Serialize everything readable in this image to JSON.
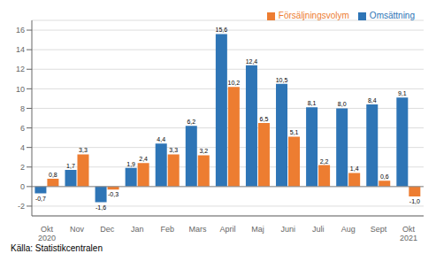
{
  "chart_data": {
    "type": "bar",
    "categories": [
      "Okt\n2020",
      "Nov",
      "Dec",
      "Jan",
      "Feb",
      "Mars",
      "April",
      "Maj",
      "Juni",
      "Juli",
      "Aug",
      "Sept",
      "Okt\n2021"
    ],
    "series": [
      {
        "name": "Omsättning",
        "color": "#2e75b6",
        "values": [
          -0.7,
          1.7,
          -1.6,
          1.9,
          4.4,
          6.2,
          15.6,
          12.4,
          10.5,
          8.1,
          8.0,
          8.4,
          9.1
        ],
        "value_labels": [
          "-0,7",
          "1,7",
          "-1,6",
          "1,9",
          "4,4",
          "6,2",
          "15,6",
          "12,4",
          "10,5",
          "8,1",
          "8,0",
          "8,4",
          "9,1"
        ]
      },
      {
        "name": "Försäljningsvolym",
        "color": "#ed7d31",
        "values": [
          0.8,
          3.3,
          -0.3,
          2.4,
          3.3,
          3.2,
          10.2,
          6.5,
          5.1,
          2.2,
          1.4,
          0.6,
          -1.0
        ],
        "value_labels": [
          "0,8",
          "3,3",
          "-0,3",
          "2,4",
          "3,3",
          "3,2",
          "10,2",
          "6,5",
          "5,1",
          "2,2",
          "1,4",
          "0,6",
          "-1,0"
        ]
      }
    ],
    "ylim": [
      -3,
      17
    ],
    "yticks": [
      -2,
      0,
      2,
      4,
      6,
      8,
      10,
      12,
      14,
      16
    ],
    "grid": true,
    "legend": "upper right",
    "data_labels": true,
    "annotations": [
      "Källa: Statistikcentralen"
    ]
  }
}
